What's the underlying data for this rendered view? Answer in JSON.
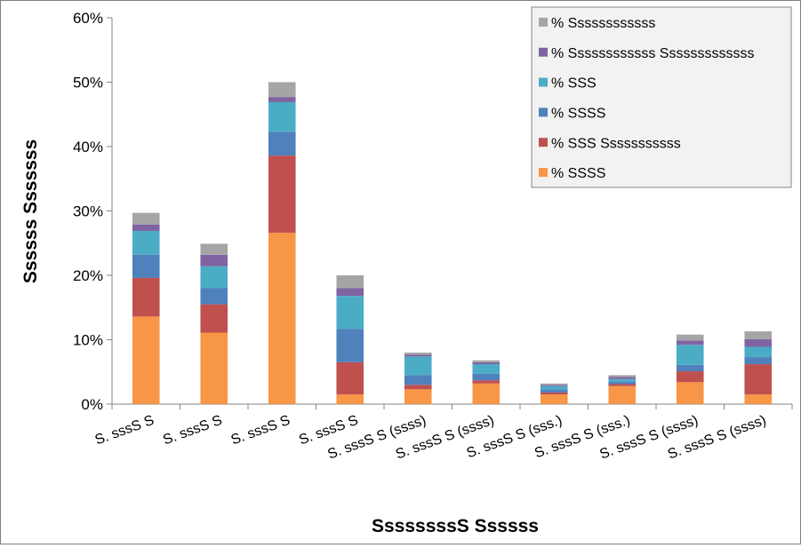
{
  "chart_data": {
    "type": "bar",
    "stacked": true,
    "title": "",
    "xlabel": "SsssssssS Ssssss",
    "ylabel": "Ssssss Sssssss",
    "ylim": [
      0,
      60
    ],
    "yticks": [
      0,
      10,
      20,
      30,
      40,
      50,
      60
    ],
    "ytick_format": "percent",
    "grid": false,
    "legend_position": "top-right",
    "categories": [
      "S. sssS S",
      "S. sssS S",
      "S. sssS S",
      "S. sssS S",
      "S. sssS S (ssss)",
      "S. sssS S (ssss)",
      "S. sssS S (sss.)",
      "S. sssS S (sss.)",
      "S. sssS S (ssss)",
      "S. sssS S (ssss)"
    ],
    "series": [
      {
        "name": "% SSSS",
        "color": "#f79646",
        "values": [
          13.6,
          11.1,
          26.6,
          1.5,
          2.3,
          3.2,
          1.5,
          2.8,
          3.4,
          1.5
        ]
      },
      {
        "name": "% SSS Sssssssssss",
        "color": "#c0504d",
        "values": [
          6.0,
          4.4,
          12.0,
          5.0,
          0.7,
          0.5,
          0.3,
          0.3,
          1.7,
          4.7
        ]
      },
      {
        "name": "% SSSS",
        "color": "#4f81bd",
        "values": [
          3.6,
          2.5,
          3.7,
          5.2,
          1.5,
          1.0,
          0.5,
          0.4,
          1.0,
          1.1
        ]
      },
      {
        "name": "% SSS",
        "color": "#4bacc6",
        "values": [
          3.7,
          3.4,
          4.6,
          5.1,
          2.9,
          1.5,
          0.5,
          0.4,
          3.1,
          1.6
        ]
      },
      {
        "name": "% Ssssssssssss Sssssssssssss",
        "color": "#8064a2",
        "values": [
          1.0,
          1.8,
          0.8,
          1.2,
          0.3,
          0.3,
          0.2,
          0.3,
          0.7,
          1.2
        ]
      },
      {
        "name": "% Ssssssssssss",
        "color": "#a5a5a5",
        "values": [
          1.8,
          1.7,
          2.3,
          2.0,
          0.3,
          0.3,
          0.2,
          0.3,
          0.9,
          1.2
        ]
      }
    ]
  }
}
